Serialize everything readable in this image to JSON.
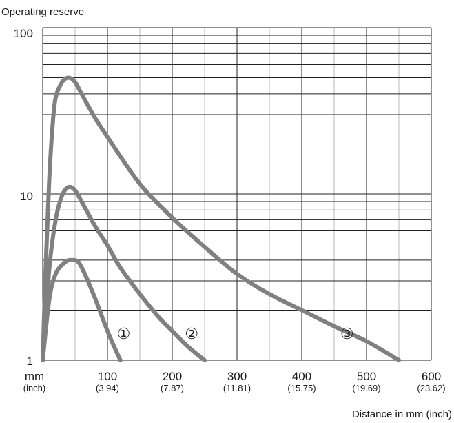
{
  "chart_data": {
    "type": "line",
    "ylabel": "Operating reserve",
    "xlabel": "Distance in mm (inch)",
    "yscale": "log",
    "ylim": [
      1,
      100
    ],
    "xlim": [
      0,
      600
    ],
    "grid": true,
    "y_tick_labels": [
      "1",
      "10",
      "100"
    ],
    "x_unit_label": "mm",
    "x_unit_sub_label": "(inch)",
    "x_ticks": [
      {
        "value": 100,
        "mm": "100",
        "inch": "(3.94)"
      },
      {
        "value": 200,
        "mm": "200",
        "inch": "(7.87)"
      },
      {
        "value": 300,
        "mm": "300",
        "inch": "(11.81)"
      },
      {
        "value": 400,
        "mm": "400",
        "inch": "(15.75)"
      },
      {
        "value": 500,
        "mm": "500",
        "inch": "(19.69)"
      },
      {
        "value": 600,
        "mm": "600",
        "inch": "(23.62)"
      }
    ],
    "series": [
      {
        "marker": "①",
        "label_at": {
          "x": 125,
          "y": 1.45
        },
        "points": [
          [
            0,
            1.0
          ],
          [
            10,
            2.3
          ],
          [
            20,
            3.3
          ],
          [
            35,
            3.9
          ],
          [
            45,
            4.0
          ],
          [
            55,
            3.9
          ],
          [
            65,
            3.3
          ],
          [
            80,
            2.4
          ],
          [
            100,
            1.5
          ],
          [
            115,
            1.1
          ],
          [
            120,
            1.0
          ]
        ]
      },
      {
        "marker": "②",
        "label_at": {
          "x": 230,
          "y": 1.45
        },
        "points": [
          [
            0,
            1.0
          ],
          [
            10,
            3.5
          ],
          [
            20,
            7.0
          ],
          [
            30,
            9.8
          ],
          [
            40,
            11.0
          ],
          [
            50,
            10.5
          ],
          [
            60,
            9.0
          ],
          [
            80,
            6.5
          ],
          [
            100,
            4.9
          ],
          [
            120,
            3.6
          ],
          [
            150,
            2.5
          ],
          [
            180,
            1.8
          ],
          [
            200,
            1.5
          ],
          [
            225,
            1.2
          ],
          [
            250,
            1.0
          ]
        ]
      },
      {
        "marker": "③",
        "label_at": {
          "x": 470,
          "y": 1.45
        },
        "points": [
          [
            0,
            1.0
          ],
          [
            5,
            4.0
          ],
          [
            10,
            12.0
          ],
          [
            15,
            25.0
          ],
          [
            20,
            38.0
          ],
          [
            30,
            47.0
          ],
          [
            40,
            50.0
          ],
          [
            50,
            47.0
          ],
          [
            60,
            40.0
          ],
          [
            80,
            29.0
          ],
          [
            100,
            22.0
          ],
          [
            150,
            11.5
          ],
          [
            200,
            7.2
          ],
          [
            250,
            4.8
          ],
          [
            300,
            3.3
          ],
          [
            350,
            2.5
          ],
          [
            400,
            2.0
          ],
          [
            450,
            1.6
          ],
          [
            500,
            1.3
          ],
          [
            550,
            1.0
          ]
        ]
      }
    ]
  }
}
